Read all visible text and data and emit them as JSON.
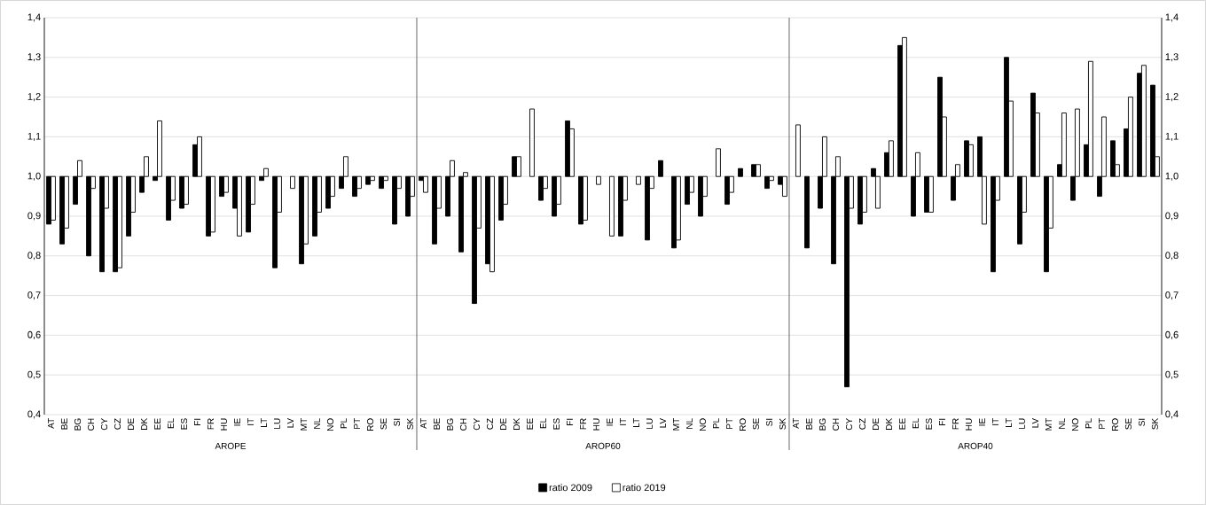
{
  "chart_data": {
    "type": "bar",
    "categories": [
      "AT",
      "BE",
      "BG",
      "CH",
      "CY",
      "CZ",
      "DE",
      "DK",
      "EE",
      "EL",
      "ES",
      "FI",
      "FR",
      "HU",
      "IE",
      "IT",
      "LT",
      "LU",
      "LV",
      "MT",
      "NL",
      "NO",
      "PL",
      "PT",
      "RO",
      "SE",
      "SI",
      "SK",
      "AT",
      "BE",
      "BG",
      "CH",
      "CY",
      "CZ",
      "DE",
      "DK",
      "EE",
      "EL",
      "ES",
      "FI",
      "FR",
      "HU",
      "IE",
      "IT",
      "LT",
      "LU",
      "LV",
      "MT",
      "NL",
      "NO",
      "PL",
      "PT",
      "RO",
      "SE",
      "SI",
      "SK",
      "AT",
      "BE",
      "BG",
      "CH",
      "CY",
      "CZ",
      "DE",
      "DK",
      "EE",
      "EL",
      "ES",
      "FI",
      "FR",
      "HU",
      "IE",
      "IT",
      "LT",
      "LU",
      "LV",
      "MT",
      "NL",
      "NO",
      "PL",
      "PT",
      "RO",
      "SE",
      "SI",
      "SK"
    ],
    "series": [
      {
        "name": "ratio 2009",
        "color": "#000000",
        "base": [
          1,
          1,
          1,
          1,
          1,
          1,
          1,
          1,
          1,
          1,
          1,
          1,
          1,
          1,
          1,
          1,
          1,
          1,
          null,
          1,
          1,
          1,
          1,
          1,
          1,
          1,
          1,
          1,
          1,
          1,
          1,
          1,
          1,
          1,
          1,
          1,
          null,
          1,
          1,
          1,
          1,
          null,
          null,
          1,
          null,
          1,
          1,
          1,
          1,
          1,
          null,
          1,
          1,
          1,
          1,
          1,
          null,
          1,
          1,
          1,
          1,
          1,
          1,
          1,
          1,
          1,
          1,
          1,
          1,
          1,
          1,
          1,
          1,
          1,
          1,
          1,
          1,
          1,
          1,
          1,
          1,
          1,
          1,
          1
        ],
        "values": [
          -0.12,
          -0.17,
          -0.07,
          -0.2,
          -0.24,
          -0.24,
          -0.15,
          -0.04,
          -0.01,
          -0.11,
          -0.08,
          0.08,
          -0.15,
          -0.05,
          -0.08,
          -0.14,
          -0.01,
          -0.23,
          null,
          -0.22,
          -0.15,
          -0.08,
          -0.03,
          -0.05,
          -0.02,
          -0.03,
          -0.12,
          -0.1,
          -0.01,
          -0.17,
          -0.1,
          -0.19,
          -0.32,
          -0.22,
          -0.11,
          0.05,
          null,
          -0.06,
          -0.1,
          0.14,
          -0.12,
          null,
          null,
          -0.15,
          null,
          -0.16,
          0.04,
          -0.18,
          -0.07,
          -0.1,
          null,
          -0.07,
          0.02,
          0.03,
          -0.03,
          -0.02,
          null,
          -0.18,
          -0.08,
          -0.22,
          -0.53,
          -0.12,
          0.02,
          0.06,
          0.33,
          -0.1,
          -0.09,
          0.25,
          -0.06,
          0.09,
          0.1,
          -0.24,
          0.3,
          -0.17,
          0.21,
          -0.24,
          0.03,
          -0.06,
          0.08,
          -0.05,
          0.09,
          0.12,
          0.26,
          0.23
        ]
      },
      {
        "name": "ratio 2019",
        "color": "#ffffff",
        "base": [
          1,
          1,
          1,
          1,
          1,
          1,
          1,
          1,
          1,
          1,
          1,
          1,
          1,
          1,
          1,
          1,
          1,
          1,
          1,
          1,
          1,
          1,
          1,
          1,
          1,
          1,
          1,
          1,
          1,
          1,
          1,
          1,
          1,
          1,
          1,
          1,
          1,
          1,
          1,
          1,
          1,
          1,
          1,
          1,
          1,
          1,
          null,
          1,
          1,
          1,
          1,
          1,
          null,
          1,
          1,
          1,
          1,
          null,
          1,
          1,
          1,
          1,
          1,
          1,
          1,
          1,
          1,
          1,
          1,
          1,
          1,
          1,
          1,
          1,
          1,
          1,
          1,
          1,
          1,
          1,
          1,
          1,
          1,
          1
        ],
        "values": [
          -0.11,
          -0.13,
          0.04,
          -0.03,
          -0.08,
          -0.23,
          -0.09,
          0.05,
          0.14,
          -0.06,
          -0.07,
          0.1,
          -0.14,
          -0.04,
          -0.15,
          -0.07,
          0.02,
          -0.09,
          -0.03,
          -0.17,
          -0.09,
          -0.05,
          0.05,
          -0.03,
          -0.01,
          -0.01,
          -0.03,
          -0.05,
          -0.04,
          -0.08,
          0.04,
          0.01,
          -0.13,
          -0.24,
          -0.07,
          0.05,
          0.17,
          -0.03,
          -0.07,
          0.12,
          -0.11,
          -0.02,
          -0.15,
          -0.06,
          -0.02,
          -0.03,
          null,
          -0.16,
          -0.04,
          -0.05,
          0.07,
          -0.04,
          null,
          0.03,
          -0.01,
          -0.05,
          0.13,
          null,
          0.1,
          0.05,
          -0.08,
          -0.09,
          -0.08,
          0.09,
          0.35,
          0.06,
          -0.09,
          0.15,
          0.03,
          0.08,
          -0.12,
          -0.06,
          0.19,
          -0.09,
          0.16,
          -0.13,
          0.16,
          0.17,
          0.29,
          0.15,
          0.03,
          0.2,
          0.28,
          0.05
        ]
      }
    ],
    "annotations": [
      "AROPE",
      "AROP60",
      "AROP40"
    ],
    "ylim": [
      0.4,
      1.4
    ],
    "yticks": [
      {
        "value": 0.4,
        "label": "0,4"
      },
      {
        "value": 0.5,
        "label": "0,5"
      },
      {
        "value": 0.6,
        "label": "0,6"
      },
      {
        "value": 0.7,
        "label": "0,7"
      },
      {
        "value": 0.8,
        "label": "0,8"
      },
      {
        "value": 0.9,
        "label": "0,9"
      },
      {
        "value": 1.0,
        "label": "1,0"
      },
      {
        "value": 1.1,
        "label": "1,1"
      },
      {
        "value": 1.2,
        "label": "1,2"
      },
      {
        "value": 1.3,
        "label": "1,3"
      },
      {
        "value": 1.4,
        "label": "1,4"
      }
    ],
    "y2lim": [
      0.4,
      1.4
    ],
    "y2ticks": [
      {
        "value": 0.4,
        "label": "0,4"
      },
      {
        "value": 0.5,
        "label": "0,5"
      },
      {
        "value": 0.6,
        "label": "0,6"
      },
      {
        "value": 0.7,
        "label": "0,7"
      },
      {
        "value": 0.8,
        "label": "0,8"
      },
      {
        "value": 0.9,
        "label": "0,9"
      },
      {
        "value": 1.0,
        "label": "1,0"
      },
      {
        "value": 1.1,
        "label": "1,1"
      },
      {
        "value": 1.2,
        "label": "1,2"
      },
      {
        "value": 1.3,
        "label": "1,3"
      },
      {
        "value": 1.4,
        "label": "1,4"
      }
    ],
    "grid": "y",
    "legend": "bottom"
  }
}
